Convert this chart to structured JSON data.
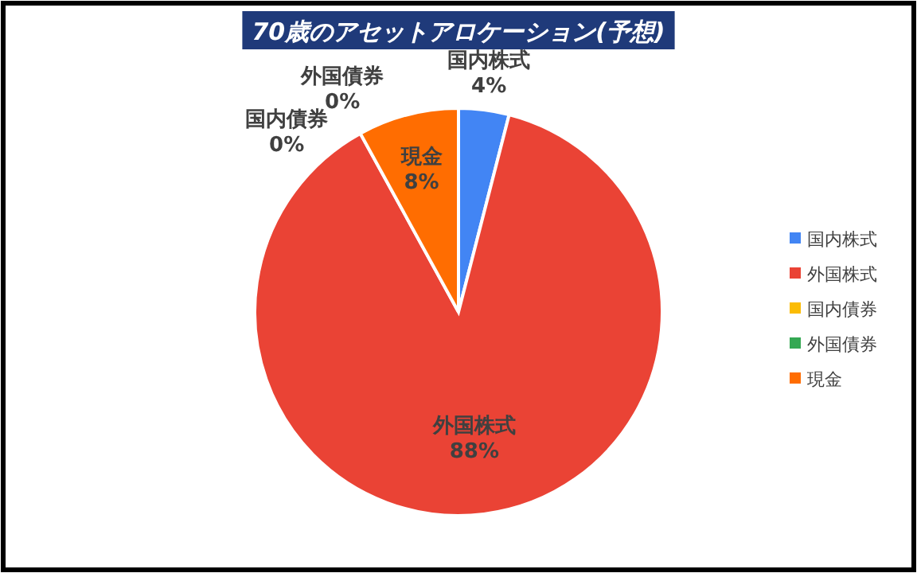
{
  "chart_data": {
    "type": "pie",
    "title": "70歳のアセットアロケーション(予想)",
    "categories": [
      "国内株式",
      "外国株式",
      "国内債券",
      "外国債券",
      "現金"
    ],
    "values": [
      4,
      88,
      0,
      0,
      8
    ],
    "colors": [
      "#4285f4",
      "#ea4335",
      "#fbbc04",
      "#34a853",
      "#ff6d01"
    ],
    "value_labels": [
      "4%",
      "88%",
      "0%",
      "0%",
      "8%"
    ],
    "legend": "right"
  }
}
